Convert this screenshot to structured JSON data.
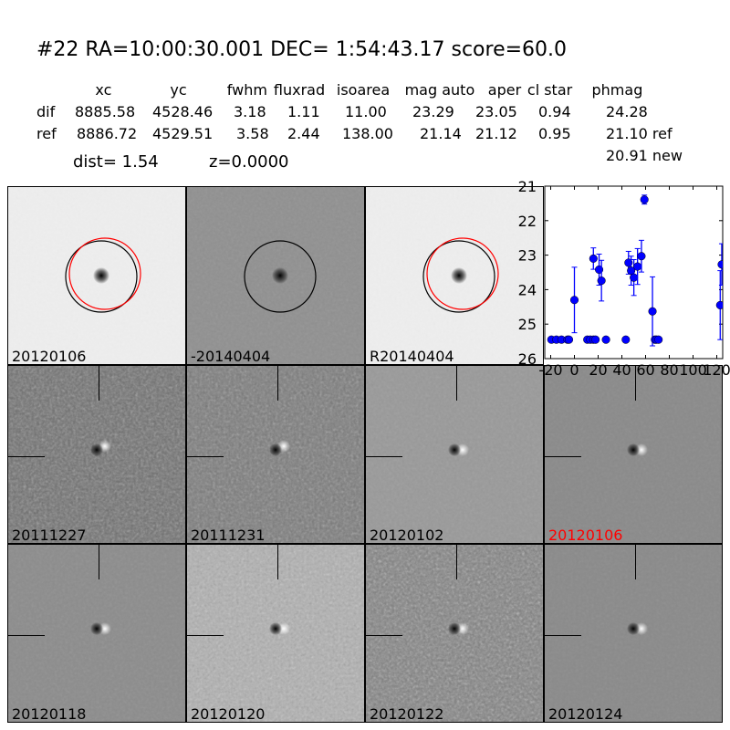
{
  "header": {
    "title": "#22   RA=10:00:30.001 DEC= 1:54:43.17      score=60.0"
  },
  "table": {
    "columns": [
      "xc",
      "yc",
      "fwhm",
      "fluxrad",
      "isoarea",
      "mag auto",
      "aper",
      "cl star",
      "phmag"
    ],
    "rows": [
      {
        "label": "dif",
        "values": [
          "8885.58",
          "4528.46",
          "3.18",
          "1.11",
          "11.00",
          "23.29",
          "23.05",
          "0.94",
          "24.28"
        ]
      },
      {
        "label": "ref",
        "values": [
          "8886.72",
          "4529.51",
          "3.58",
          "2.44",
          "138.00",
          "21.14",
          "21.12",
          "0.95",
          "21.10 ref"
        ]
      }
    ],
    "extra": "20.91 new",
    "dist": "dist=  1.54",
    "z": "z=0.0000"
  },
  "tiles": [
    {
      "label": "20120106",
      "shade": "#eeeeee",
      "noise": 0.1,
      "circles": [
        "black",
        "red"
      ]
    },
    {
      "label": "-20140404",
      "shade": "#909090",
      "noise": 0.25,
      "circles": [
        "black"
      ]
    },
    {
      "label": "R20140404",
      "shade": "#eeeeee",
      "noise": 0.1,
      "circles": [
        "black",
        "red"
      ]
    },
    {
      "label": "20111227",
      "shade": "#6e6e6e",
      "noise": 0.9
    },
    {
      "label": "20111231",
      "shade": "#7a7a7a",
      "noise": 0.8
    },
    {
      "label": "20120102",
      "shade": "#999999",
      "noise": 0.3
    },
    {
      "label": "20120106",
      "shade": "#8a8a8a",
      "noise": 0.2,
      "label_color": "#ff0000"
    },
    {
      "label": "20120118",
      "shade": "#8c8c8c",
      "noise": 0.25
    },
    {
      "label": "20120120",
      "shade": "#b0b0b0",
      "noise": 0.8
    },
    {
      "label": "20120122",
      "shade": "#808080",
      "noise": 1.0
    },
    {
      "label": "20120124",
      "shade": "#8a8a8a",
      "noise": 0.2
    }
  ],
  "chart_data": {
    "type": "scatter",
    "xlim": [
      -25,
      125
    ],
    "ylim": [
      26,
      21
    ],
    "y_inverted": true,
    "xticks": [
      -20,
      0,
      20,
      40,
      60,
      80,
      100,
      120
    ],
    "yticks": [
      21,
      22,
      23,
      24,
      25,
      26
    ],
    "color": "#0000ff",
    "points": [
      {
        "x": -19.4,
        "y": 25.45,
        "err": 0.03
      },
      {
        "x": -15.2,
        "y": 25.45,
        "err": 0.03
      },
      {
        "x": -10.9,
        "y": 25.45,
        "err": 0.03
      },
      {
        "x": -5.8,
        "y": 25.45,
        "err": 0.03
      },
      {
        "x": -4.6,
        "y": 25.45,
        "err": 0.03
      },
      {
        "x": 0,
        "y": 24.3,
        "err": 0.95
      },
      {
        "x": 10.9,
        "y": 25.45,
        "err": 0.03
      },
      {
        "x": 13.4,
        "y": 25.45,
        "err": 0.03
      },
      {
        "x": 16.0,
        "y": 25.45,
        "err": 0.03
      },
      {
        "x": 17.8,
        "y": 25.45,
        "err": 0.03
      },
      {
        "x": 16.0,
        "y": 23.1,
        "err": 0.31
      },
      {
        "x": 20.8,
        "y": 23.42,
        "err": 0.45
      },
      {
        "x": 22.8,
        "y": 23.74,
        "err": 0.59
      },
      {
        "x": 26.6,
        "y": 25.45,
        "err": 0.03
      },
      {
        "x": 43.3,
        "y": 25.45,
        "err": 0.03
      },
      {
        "x": 45.6,
        "y": 23.22,
        "err": 0.33
      },
      {
        "x": 47.8,
        "y": 23.45,
        "err": 0.42
      },
      {
        "x": 50.1,
        "y": 23.65,
        "err": 0.52
      },
      {
        "x": 53.2,
        "y": 23.33,
        "err": 0.52
      },
      {
        "x": 56.5,
        "y": 23.03,
        "err": 0.46
      },
      {
        "x": 59.0,
        "y": 21.39,
        "err": 0.13
      },
      {
        "x": 65.8,
        "y": 24.63,
        "err": 1.0
      },
      {
        "x": 67.9,
        "y": 25.45,
        "err": 0.03
      },
      {
        "x": 69.1,
        "y": 25.45,
        "err": 0.03
      },
      {
        "x": 70.9,
        "y": 25.45,
        "err": 0.03
      },
      {
        "x": 122.9,
        "y": 24.45,
        "err": 1.0
      },
      {
        "x": 124.2,
        "y": 23.27,
        "err": 0.6
      }
    ]
  }
}
